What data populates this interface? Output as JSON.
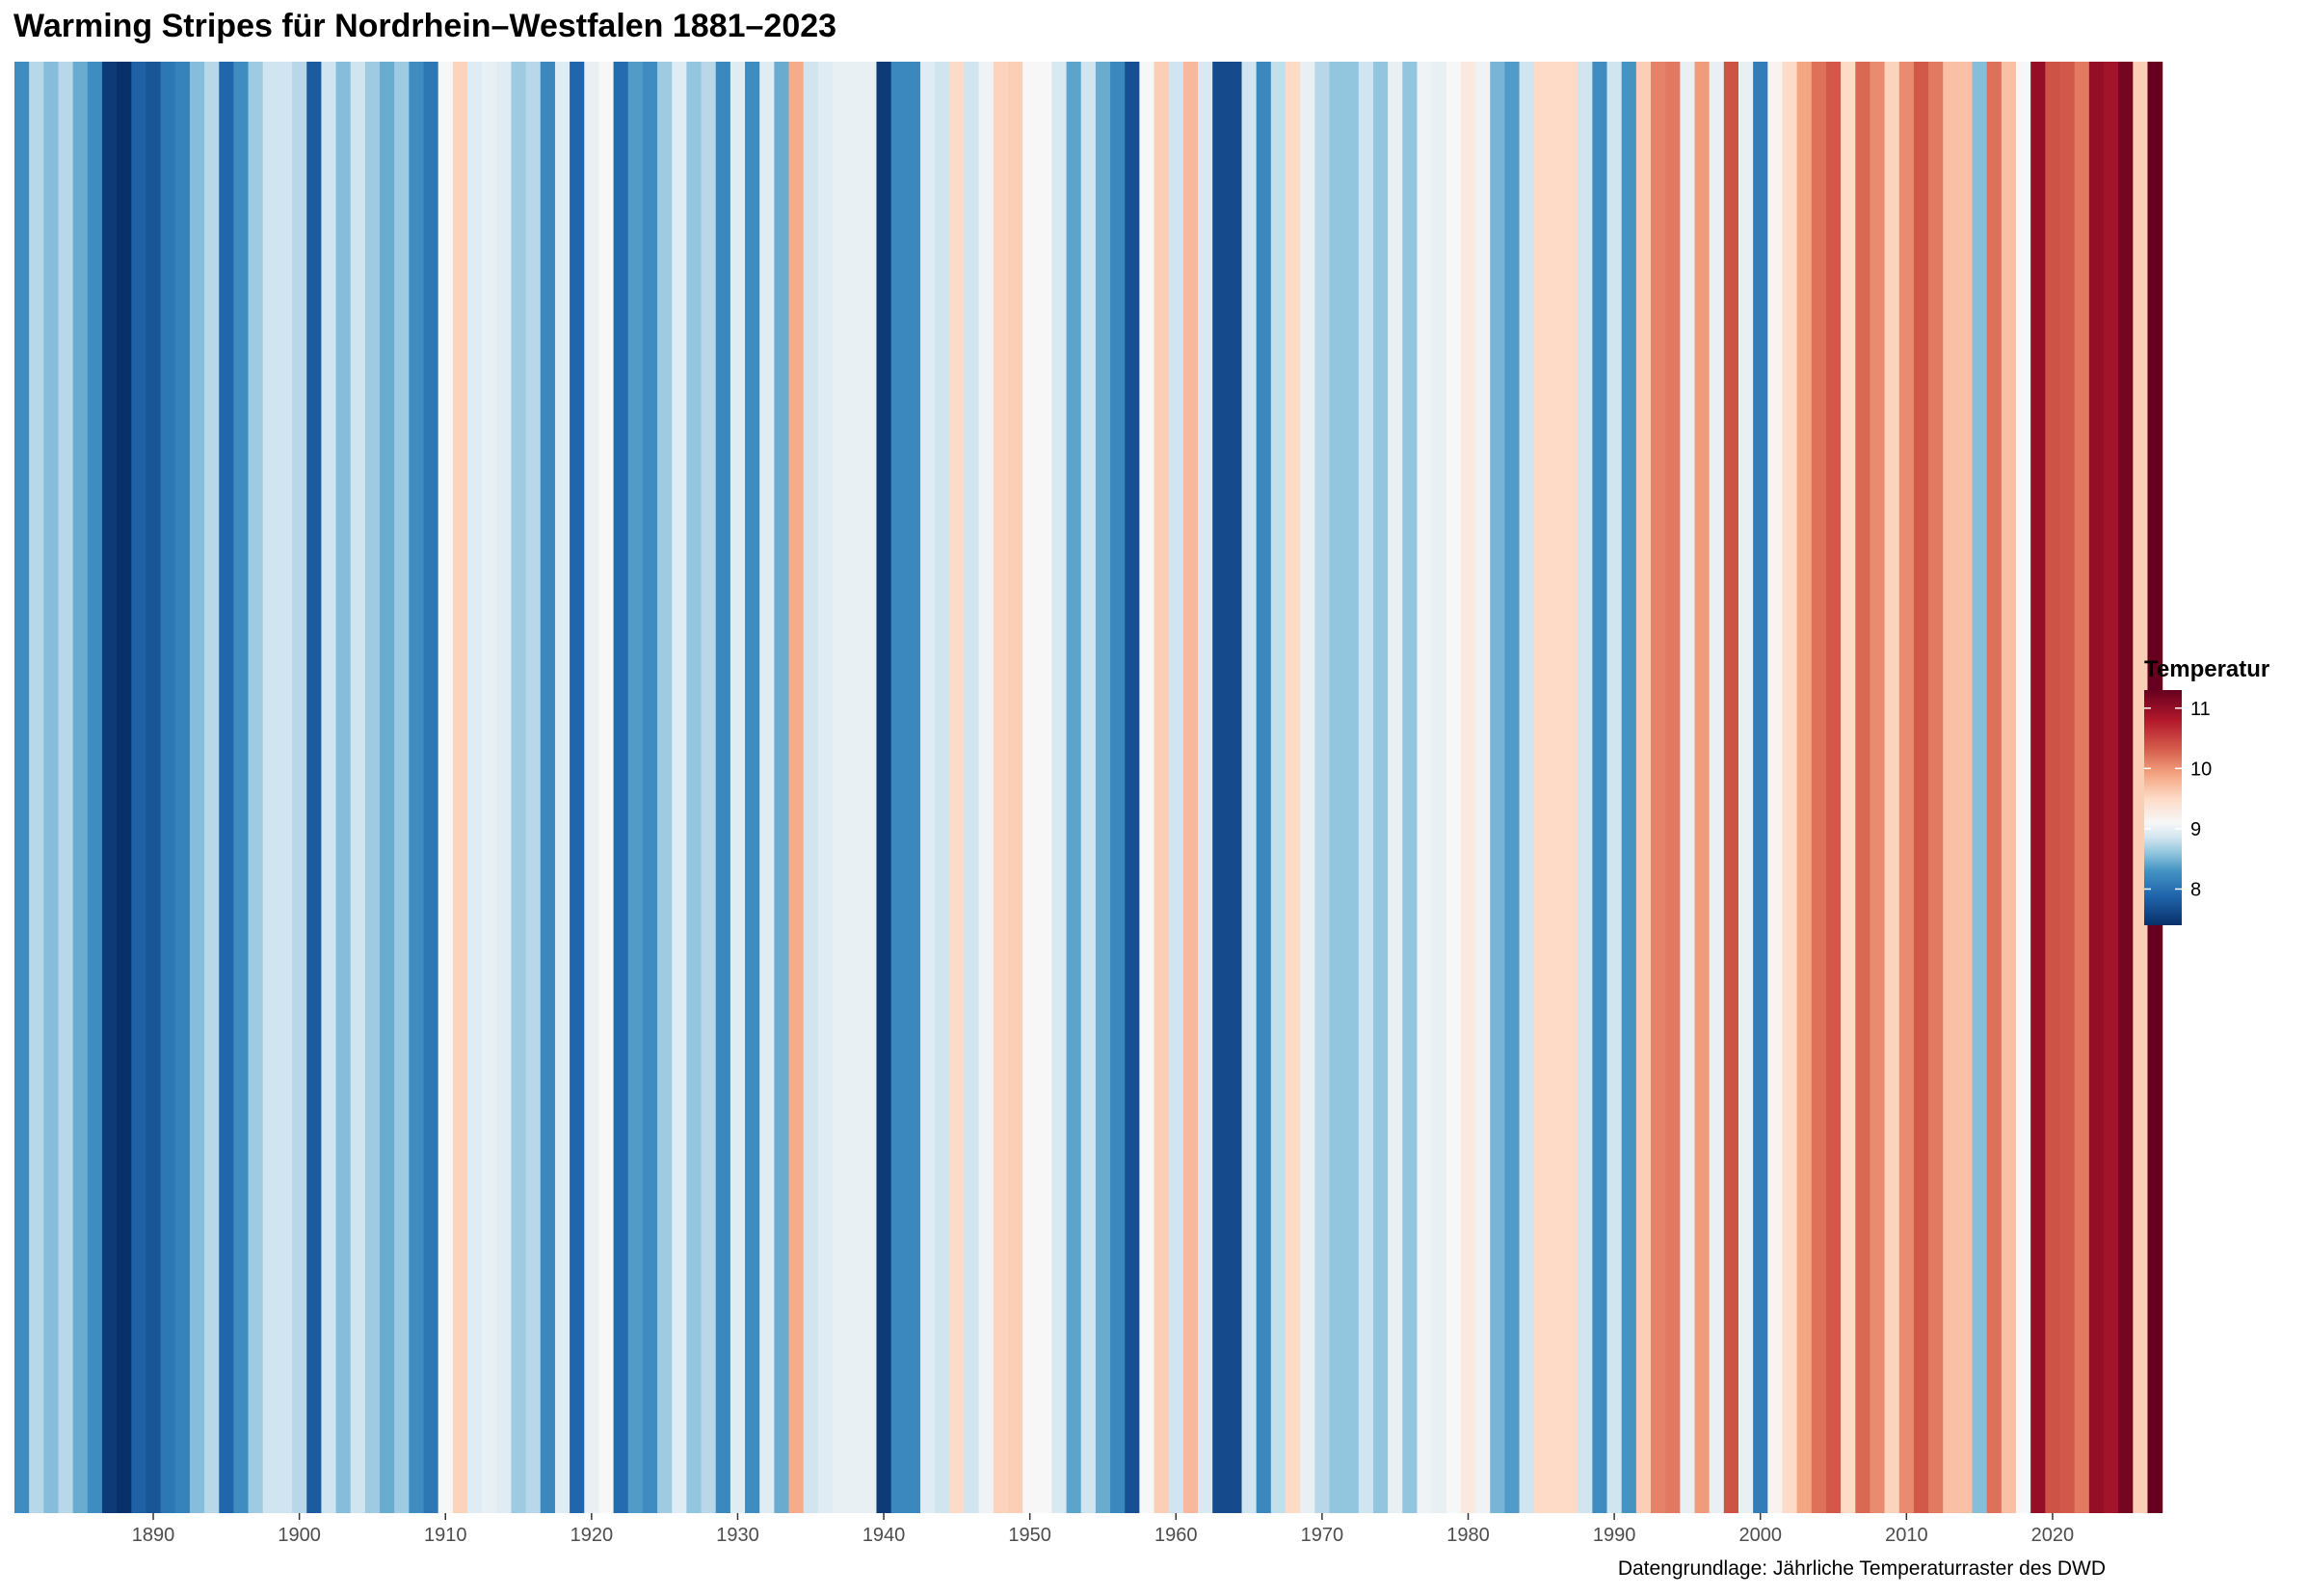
{
  "header": {
    "title": "Warming Stripes für Nordrhein–Westfalen 1881–2023"
  },
  "footer": {
    "caption": "Datengrundlage: Jährliche Temperaturraster des DWD"
  },
  "chart_data": {
    "type": "heatmap",
    "subtype": "warming-stripes",
    "title": "Warming Stripes für Nordrhein–Westfalen 1881–2023",
    "caption": "Datengrundlage: Jährliche Temperaturraster des DWD",
    "x_unit": "year",
    "x_range": [
      1881,
      2023
    ],
    "x_ticks": [
      1890,
      1900,
      1910,
      1920,
      1930,
      1940,
      1950,
      1960,
      1970,
      1980,
      1990,
      2000,
      2010,
      2020
    ],
    "x_tick_labels": [
      "1890",
      "1900",
      "1910",
      "1920",
      "1930",
      "1940",
      "1950",
      "1960",
      "1970",
      "1980",
      "1990",
      "2000",
      "2010",
      "2020"
    ],
    "grid": false,
    "legend": {
      "title": "Temperatur",
      "position": "right",
      "range": [
        7.4,
        11.3
      ],
      "ticks": [
        8,
        9,
        10,
        11
      ],
      "tick_labels": [
        "8",
        "9",
        "10",
        "11"
      ],
      "colormap": "RdBu (reversed)",
      "color_stops": [
        {
          "value": 7.4,
          "color": "#08306b"
        },
        {
          "value": 7.9,
          "color": "#2166ac"
        },
        {
          "value": 8.3,
          "color": "#4393c3"
        },
        {
          "value": 8.6,
          "color": "#92c5de"
        },
        {
          "value": 8.85,
          "color": "#d1e5f0"
        },
        {
          "value": 9.1,
          "color": "#f7f7f7"
        },
        {
          "value": 9.5,
          "color": "#fddbc7"
        },
        {
          "value": 9.9,
          "color": "#f4a582"
        },
        {
          "value": 10.3,
          "color": "#d6604d"
        },
        {
          "value": 10.8,
          "color": "#b2182b"
        },
        {
          "value": 11.3,
          "color": "#67001f"
        }
      ]
    },
    "series": [
      {
        "years_start": 1881,
        "values": [
          8.25,
          8.75,
          8.55,
          8.75,
          8.45,
          8.25,
          7.5,
          7.4,
          7.85,
          7.75,
          8.05,
          8.15,
          8.55,
          8.75,
          7.9,
          8.25,
          8.65,
          8.85,
          8.85,
          8.75,
          7.8,
          8.85,
          8.55,
          8.85,
          8.65,
          8.45,
          8.65,
          8.25,
          8.05,
          9.1,
          9.55,
          8.95,
          9.0,
          8.95,
          8.65,
          8.75,
          8.2,
          8.95,
          7.9,
          9.0,
          9.1,
          7.95,
          8.35,
          8.25,
          8.65,
          8.95,
          8.6,
          8.75,
          8.2,
          8.95,
          8.25,
          8.95,
          8.45,
          9.85,
          8.85,
          8.95,
          9.0,
          9.0,
          9.0,
          7.5,
          8.2,
          8.2,
          8.95,
          8.85,
          9.5,
          8.85,
          9.05,
          9.55,
          9.6,
          9.1,
          9.1,
          8.9,
          8.4,
          8.85,
          8.45,
          8.2,
          7.7,
          9.1,
          9.6,
          8.85,
          9.75,
          8.9,
          7.65,
          7.65,
          8.85,
          8.2,
          8.8,
          9.5,
          9.0,
          8.75,
          8.6,
          8.6,
          8.85,
          8.6,
          9.0,
          8.6,
          9.05,
          9.0,
          9.1,
          9.3,
          9.05,
          8.5,
          8.35,
          8.85,
          9.5,
          9.5,
          9.5,
          8.85,
          8.25,
          8.85,
          8.3,
          9.6,
          10.1,
          10.15,
          9.0,
          9.95,
          9.0,
          10.4,
          9.0,
          8.1,
          9.15,
          9.5,
          9.9,
          10.2,
          10.35,
          9.5,
          10.25,
          10.05,
          9.55,
          10.05,
          10.35,
          10.15,
          9.7,
          9.7,
          8.55,
          10.2,
          9.7,
          9.1,
          11.0,
          10.4,
          10.35,
          10.15,
          11.0,
          10.9,
          11.2,
          9.6,
          11.3
        ]
      }
    ]
  }
}
